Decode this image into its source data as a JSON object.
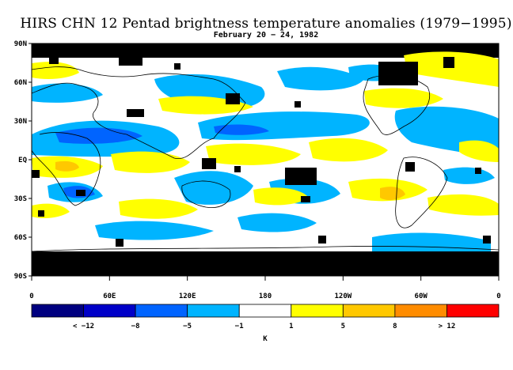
{
  "title": "HIRS CHN 12 Pentad brightness temperature anomalies (1979−1995)",
  "subtitle": "February 20 − 24, 1982",
  "lat_labels": [
    "90N",
    "60N",
    "30N",
    "EQ",
    "30S",
    "60S",
    "90S"
  ],
  "lon_labels": [
    "0",
    "60E",
    "120E",
    "180",
    "120W",
    "60W",
    "0"
  ],
  "colorbar": {
    "colors": [
      "#000080",
      "#0000c8",
      "#0064ff",
      "#00b4ff",
      "#ffffff",
      "#ffff00",
      "#ffc800",
      "#ff8c00",
      "#ff0000"
    ],
    "labels": [
      "< −12",
      "−8",
      "−5",
      "−1",
      "1",
      "5",
      "8",
      "> 12"
    ],
    "unit": "K"
  },
  "colors": {
    "missing": "#000000",
    "land_outline": "#000000"
  }
}
